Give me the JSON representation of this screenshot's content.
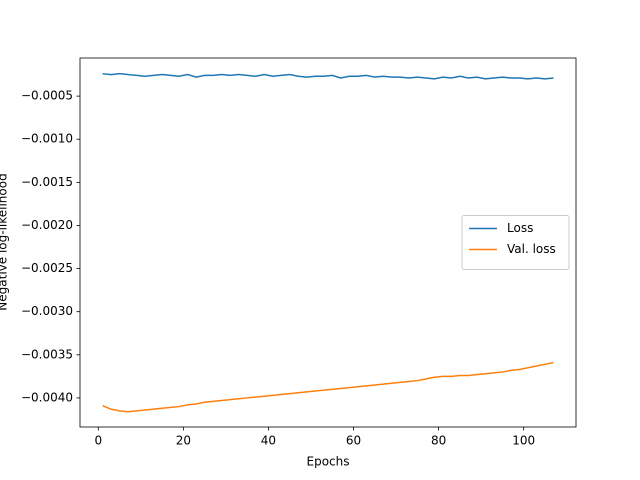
{
  "chart_data": {
    "type": "line",
    "xlabel": "Epochs",
    "ylabel": "Negative log-likelihood",
    "x": [
      1,
      3,
      5,
      7,
      9,
      11,
      13,
      15,
      17,
      19,
      21,
      23,
      25,
      27,
      29,
      31,
      33,
      35,
      37,
      39,
      41,
      43,
      45,
      47,
      49,
      51,
      53,
      55,
      57,
      59,
      61,
      63,
      65,
      67,
      69,
      71,
      73,
      75,
      77,
      79,
      81,
      83,
      85,
      87,
      89,
      91,
      93,
      95,
      97,
      99,
      101,
      103,
      105,
      107
    ],
    "series": [
      {
        "name": "Loss",
        "color": "#1f77b4",
        "values": [
          -0.00024,
          -0.00025,
          -0.00024,
          -0.00025,
          -0.00026,
          -0.00027,
          -0.00026,
          -0.00025,
          -0.00026,
          -0.00027,
          -0.00025,
          -0.00028,
          -0.00026,
          -0.00026,
          -0.00025,
          -0.00026,
          -0.00025,
          -0.00026,
          -0.00027,
          -0.00025,
          -0.00027,
          -0.00026,
          -0.00025,
          -0.00027,
          -0.00028,
          -0.00027,
          -0.00027,
          -0.00026,
          -0.00029,
          -0.00027,
          -0.00027,
          -0.00026,
          -0.00028,
          -0.00027,
          -0.00028,
          -0.00028,
          -0.00029,
          -0.00028,
          -0.00029,
          -0.0003,
          -0.00028,
          -0.00029,
          -0.00027,
          -0.00029,
          -0.00028,
          -0.0003,
          -0.00029,
          -0.00028,
          -0.00029,
          -0.00029,
          -0.0003,
          -0.00029,
          -0.0003,
          -0.00029
        ]
      },
      {
        "name": "Val. loss",
        "color": "#ff7f0e",
        "values": [
          -0.00409,
          -0.00413,
          -0.00415,
          -0.00416,
          -0.00415,
          -0.00414,
          -0.00413,
          -0.00412,
          -0.00411,
          -0.0041,
          -0.00408,
          -0.00407,
          -0.00405,
          -0.00404,
          -0.00403,
          -0.00402,
          -0.00401,
          -0.004,
          -0.00399,
          -0.00398,
          -0.00397,
          -0.00396,
          -0.00395,
          -0.00394,
          -0.00393,
          -0.00392,
          -0.00391,
          -0.0039,
          -0.00389,
          -0.00388,
          -0.00387,
          -0.00386,
          -0.00385,
          -0.00384,
          -0.00383,
          -0.00382,
          -0.00381,
          -0.0038,
          -0.00378,
          -0.00376,
          -0.00375,
          -0.00375,
          -0.00374,
          -0.00374,
          -0.00373,
          -0.00372,
          -0.00371,
          -0.0037,
          -0.00368,
          -0.00367,
          -0.00365,
          -0.00363,
          -0.00361,
          -0.00359
        ]
      }
    ],
    "xlim": [
      -4.3,
      112.3
    ],
    "xticks": [
      0,
      20,
      40,
      60,
      80,
      100
    ],
    "ylim": [
      -0.004337,
      -5.8e-05
    ],
    "yticks": [
      {
        "value": -0.004,
        "label": "−0.0040"
      },
      {
        "value": -0.0035,
        "label": "−0.0035"
      },
      {
        "value": -0.003,
        "label": "−0.0030"
      },
      {
        "value": -0.0025,
        "label": "−0.0025"
      },
      {
        "value": -0.002,
        "label": "−0.0020"
      },
      {
        "value": -0.0015,
        "label": "−0.0015"
      },
      {
        "value": -0.001,
        "label": "−0.0010"
      },
      {
        "value": -0.0005,
        "label": "−0.0005"
      }
    ],
    "legend": "center right",
    "grid": false
  }
}
